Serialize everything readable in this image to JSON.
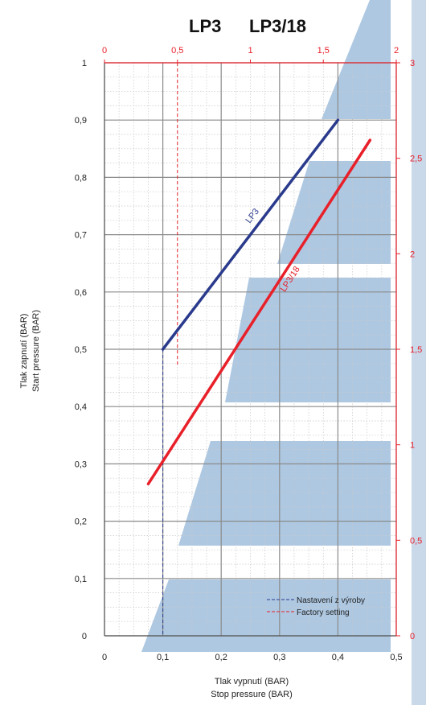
{
  "colors": {
    "blue_series": "#2a3a8c",
    "red_series": "#e8202a",
    "band": "#aec8e2",
    "grid_major": "#8a8a8a",
    "grid_minor": "#c9c9c9"
  },
  "chart_data": {
    "type": "line",
    "title_parts": [
      "LP3",
      "LP3/18"
    ],
    "xlabel_lines": [
      "Tlak vypnutí (BAR)",
      "Stop pressure (BAR)"
    ],
    "ylabel_lines": [
      "Tlak zapnutí (BAR)",
      "Start pressure (BAR)"
    ],
    "x_bottom": {
      "range": [
        0,
        0.5
      ],
      "ticks": [
        "0",
        "0,1",
        "0,2",
        "0,3",
        "0,4",
        "0,5"
      ]
    },
    "y_left": {
      "range": [
        0,
        1
      ],
      "ticks": [
        "0",
        "0,1",
        "0,2",
        "0,3",
        "0,4",
        "0,5",
        "0,6",
        "0,7",
        "0,8",
        "0,9",
        "1"
      ]
    },
    "x_top": {
      "range": [
        0,
        2
      ],
      "ticks": [
        "0",
        "0,5",
        "1",
        "1,5",
        "2"
      ],
      "color": "red"
    },
    "y_right": {
      "range": [
        0,
        3
      ],
      "ticks": [
        "0",
        "0,5",
        "1",
        "1,5",
        "2",
        "2,5",
        "3"
      ],
      "color": "red"
    },
    "series": [
      {
        "name": "LP3",
        "axes": "bottom-left",
        "points": [
          [
            0.1,
            0.5
          ],
          [
            0.4,
            0.9
          ]
        ]
      },
      {
        "name": "LP3/18",
        "axes": "bottom-left",
        "points": [
          [
            0.075,
            0.265
          ],
          [
            0.455,
            0.865
          ]
        ]
      }
    ],
    "factory_setting": {
      "blue_dashed": {
        "x": 0.1,
        "y_to": 0.5
      },
      "red_dashed": {
        "x": 0.5,
        "axis": "top",
        "y_from": 0.47
      }
    },
    "legend": [
      {
        "label": "Nastavení z výroby",
        "color": "blue",
        "style": "dashed"
      },
      {
        "label": "Factory setting",
        "color": "red",
        "style": "dashed"
      }
    ],
    "grid": true,
    "legend_placement": "bottom-right"
  }
}
